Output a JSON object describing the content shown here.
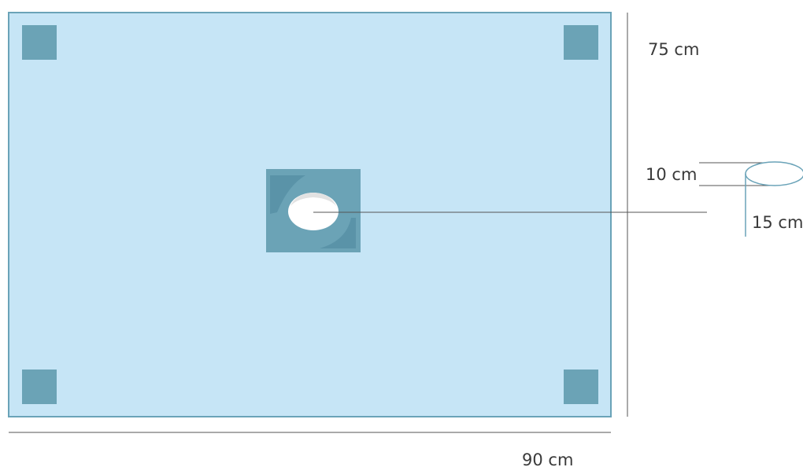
{
  "labels": {
    "height": "75 cm",
    "width": "90 cm",
    "opening_diameter": "10 cm",
    "opening_depth": "15 cm"
  },
  "colors": {
    "drape_fill": "#c6e5f6",
    "drape_border": "#6aa3b8",
    "tab_fill": "#6ba3b6",
    "patch_fill": "#6ba3b6",
    "patch_fold": "#5a93a8",
    "opening_fill": "#ffffff",
    "dimension_line": "#555555",
    "detail_line": "#6aa3b8"
  }
}
